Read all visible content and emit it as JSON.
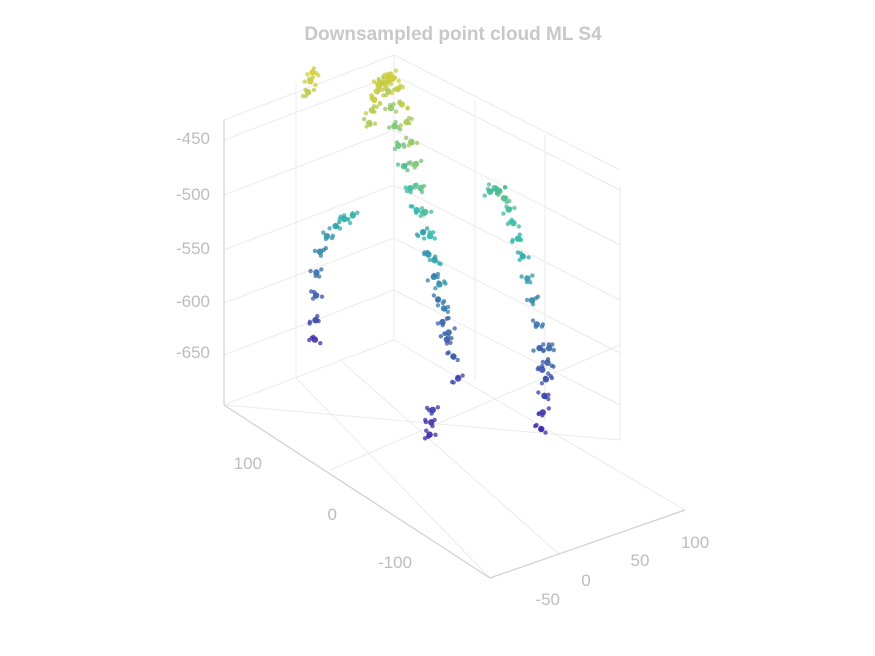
{
  "chart_data": {
    "type": "scatter",
    "title": "Downsampled point cloud ML S4",
    "grid": true,
    "colormap": "parula",
    "z_ticks": [
      "-450",
      "-500",
      "-550",
      "-600",
      "-650"
    ],
    "y_ticks": [
      "100",
      "0",
      "-100"
    ],
    "x_ticks": [
      "-50",
      "0",
      "50",
      "100"
    ],
    "xlim": [
      -80,
      120
    ],
    "ylim": [
      -160,
      160
    ],
    "zlim": [
      -700,
      -430
    ],
    "colors": {
      "low": "#3e26a8",
      "mid": "#2ab7a9",
      "high": "#f9d31f",
      "tick": "#bdbdbd",
      "title": "#c8c8c8"
    },
    "series": [
      {
        "points": [
          [
            20,
            10,
            -655
          ],
          [
            24,
            20,
            -645
          ],
          [
            28,
            30,
            -630
          ],
          [
            32,
            40,
            -615
          ],
          [
            35,
            50,
            -600
          ],
          [
            38,
            60,
            -585
          ],
          [
            40,
            70,
            -570
          ],
          [
            42,
            80,
            -555
          ],
          [
            44,
            90,
            -540
          ],
          [
            45,
            98,
            -525
          ],
          [
            46,
            104,
            -510
          ],
          [
            46,
            108,
            -495
          ],
          [
            45,
            110,
            -480
          ],
          [
            44,
            108,
            -468
          ],
          [
            42,
            104,
            -460
          ],
          [
            38,
            96,
            -458
          ],
          [
            34,
            86,
            -462
          ],
          [
            30,
            76,
            -470
          ],
          [
            28,
            68,
            -482
          ],
          [
            26,
            60,
            -496
          ],
          [
            24,
            52,
            -512
          ],
          [
            22,
            44,
            -530
          ],
          [
            20,
            36,
            -548
          ],
          [
            18,
            28,
            -566
          ],
          [
            16,
            20,
            -584
          ],
          [
            14,
            12,
            -602
          ],
          [
            12,
            4,
            -620
          ],
          [
            10,
            -4,
            -638
          ],
          [
            8,
            -12,
            -656
          ],
          [
            6,
            -20,
            -672
          ],
          [
            58,
            -60,
            -660
          ],
          [
            62,
            -52,
            -645
          ],
          [
            66,
            -44,
            -628
          ],
          [
            68,
            -36,
            -610
          ],
          [
            70,
            -28,
            -594
          ],
          [
            72,
            -20,
            -578
          ],
          [
            74,
            -12,
            -566
          ],
          [
            76,
            -4,
            -556
          ],
          [
            78,
            4,
            -548
          ],
          [
            80,
            12,
            -542
          ],
          [
            82,
            20,
            -540
          ],
          [
            84,
            28,
            -542
          ],
          [
            86,
            36,
            -550
          ],
          [
            -30,
            110,
            -690
          ],
          [
            -26,
            114,
            -675
          ],
          [
            -22,
            118,
            -655
          ],
          [
            -20,
            120,
            -635
          ],
          [
            -18,
            118,
            -615
          ],
          [
            -16,
            112,
            -598
          ],
          [
            -14,
            104,
            -585
          ],
          [
            -12,
            96,
            -575
          ],
          [
            -10,
            88,
            -568
          ],
          [
            40,
            -80,
            -700
          ],
          [
            45,
            -76,
            -688
          ],
          [
            50,
            -72,
            -676
          ],
          [
            55,
            -68,
            -664
          ],
          [
            60,
            -64,
            -652
          ],
          [
            65,
            -60,
            -642
          ],
          [
            -40,
            -40,
            -700
          ],
          [
            -35,
            -36,
            -692
          ],
          [
            -30,
            -32,
            -684
          ],
          [
            0,
            80,
            -480
          ],
          [
            6,
            84,
            -472
          ],
          [
            12,
            88,
            -466
          ],
          [
            18,
            92,
            -462
          ],
          [
            24,
            96,
            -460
          ],
          [
            30,
            100,
            -462
          ],
          [
            36,
            104,
            -466
          ],
          [
            -20,
            130,
            -470
          ],
          [
            -16,
            132,
            -462
          ],
          [
            -12,
            134,
            -456
          ]
        ]
      }
    ]
  }
}
